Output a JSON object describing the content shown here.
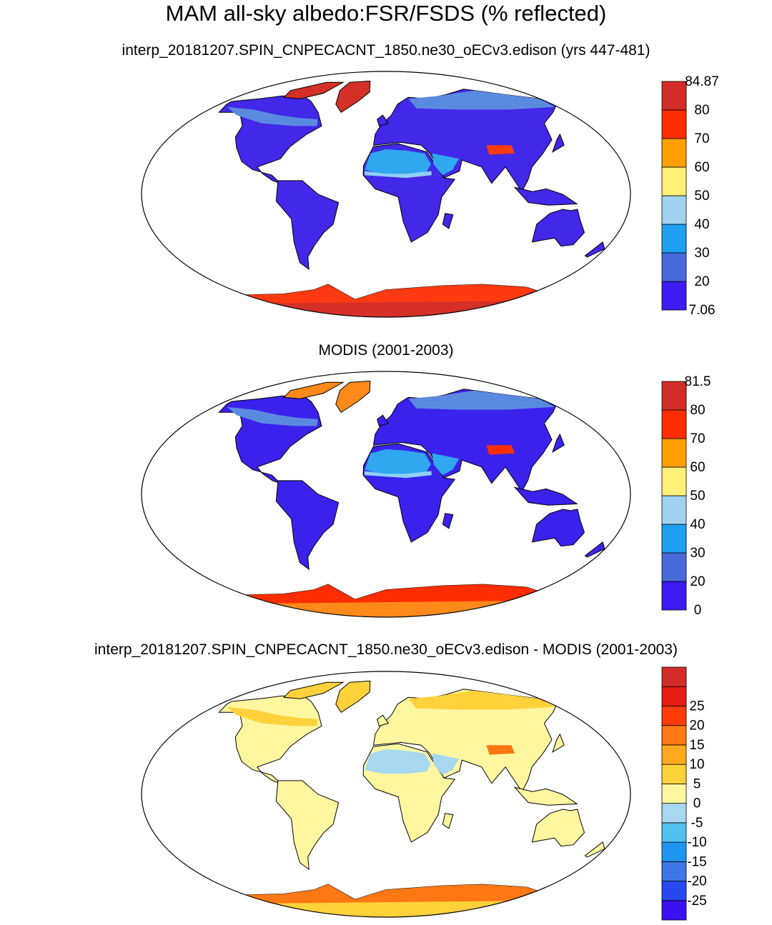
{
  "title": "MAM all-sky albedo:FSR/FSDS (% reflected)",
  "panels": [
    {
      "title": "interp_20181207.SPIN_CNPECACNT_1850.ne30_oECv3.edison (yrs 447-481)",
      "colorbar": {
        "colors": [
          "#3c1cf0",
          "#4a6adc",
          "#1ea0f0",
          "#a0d2f0",
          "#fff078",
          "#ff9f00",
          "#ff2d00",
          "#d22d28"
        ],
        "labels": [
          "7.06",
          "20",
          "30",
          "40",
          "50",
          "60",
          "70",
          "80",
          "84.87"
        ]
      },
      "fill": {
        "land": "#4228e8",
        "desert": "#2fa8f0",
        "arid": "#8fd0f2",
        "boreal": "#5a8ae0",
        "ice": "#d43028",
        "ice_edge": "#ff3a10"
      }
    },
    {
      "title": "MODIS (2001-2003)",
      "colorbar": {
        "colors": [
          "#3c1cf0",
          "#4a6adc",
          "#1ea0f0",
          "#a0d2f0",
          "#fff078",
          "#ff9f00",
          "#ff2d00",
          "#d22d28"
        ],
        "labels": [
          "0",
          "20",
          "30",
          "40",
          "50",
          "60",
          "70",
          "80",
          "81.5"
        ]
      },
      "fill": {
        "land": "#3a22ec",
        "desert": "#2fa8f0",
        "arid": "#8fd0f2",
        "boreal": "#5a8ae0",
        "ice": "#ff8a1a",
        "ice_edge": "#ff2d00"
      }
    },
    {
      "title": "interp_20181207.SPIN_CNPECACNT_1850.ne30_oECv3.edison - MODIS (2001-2003)",
      "colorbar": {
        "colors": [
          "#3c10f0",
          "#2848f0",
          "#3c78e6",
          "#1e96f0",
          "#50c0f0",
          "#a8d8f0",
          "#fff7a0",
          "#ffd23c",
          "#ffaa1e",
          "#ff7814",
          "#ff3c0a",
          "#e61e14",
          "#d22d28"
        ],
        "labels": [
          "-25",
          "-20",
          "-15",
          "-10",
          "-5",
          "0",
          "5",
          "10",
          "15",
          "20",
          "25"
        ]
      },
      "fill": {
        "land": "#fff7a0",
        "desert": "#a8d8f0",
        "arid": "#fff7a0",
        "boreal": "#ffd23c",
        "ice": "#ffd23c",
        "ice_edge": "#ff7814"
      }
    }
  ]
}
